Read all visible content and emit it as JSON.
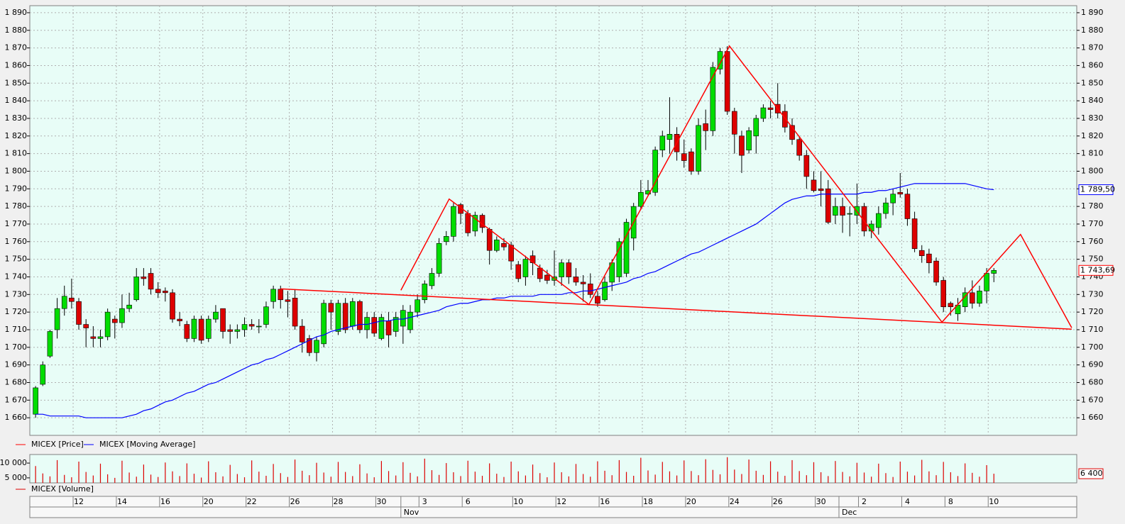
{
  "chart_data": {
    "type": "candlestick",
    "categories": [
      null,
      null,
      null,
      null,
      null,
      null,
      "12",
      null,
      null,
      null,
      null,
      null,
      "14",
      null,
      null,
      null,
      null,
      null,
      "16",
      null,
      null,
      null,
      null,
      null,
      "20",
      null,
      null,
      null,
      null,
      null,
      "22",
      null,
      null,
      null,
      null,
      null,
      "26",
      null,
      null,
      null,
      null,
      null,
      "28",
      null,
      null,
      null,
      null,
      null,
      "30",
      null,
      null,
      null,
      null,
      null,
      "3",
      null,
      null,
      null,
      null,
      null,
      "6",
      null,
      null,
      null,
      null,
      null,
      null,
      "10",
      null,
      null,
      null,
      null,
      null,
      "12",
      null,
      null,
      null,
      null,
      null,
      "16",
      null,
      null,
      null,
      null,
      null,
      "18",
      null,
      null,
      null,
      null,
      null,
      "20",
      null,
      null,
      null,
      null,
      null,
      "24",
      null,
      null,
      null,
      null,
      null,
      "26",
      null,
      null,
      null,
      null,
      null,
      "30",
      null,
      null,
      null,
      null,
      null,
      "2",
      null,
      null,
      null,
      null,
      null,
      "4",
      null,
      null,
      null,
      null,
      null,
      "8",
      null,
      null,
      null,
      null,
      null,
      "10"
    ],
    "months": [
      {
        "label": "Nov",
        "index": 50.7
      },
      {
        "label": "Dec",
        "index": 111.5
      }
    ],
    "xlim": [
      -0.8,
      144.5
    ],
    "ylim": [
      1650,
      1894
    ],
    "yticks": [
      {
        "value": 1660,
        "label": "1 660"
      },
      {
        "value": 1670,
        "label": "1 670"
      },
      {
        "value": 1680,
        "label": "1 680"
      },
      {
        "value": 1690,
        "label": "1 690"
      },
      {
        "value": 1700,
        "label": "1 700"
      },
      {
        "value": 1710,
        "label": "1 710"
      },
      {
        "value": 1720,
        "label": "1 720"
      },
      {
        "value": 1730,
        "label": "1 730"
      },
      {
        "value": 1740,
        "label": "1 740"
      },
      {
        "value": 1750,
        "label": "1 750"
      },
      {
        "value": 1760,
        "label": "1 760"
      },
      {
        "value": 1770,
        "label": "1 770"
      },
      {
        "value": 1780,
        "label": "1 780"
      },
      {
        "value": 1790,
        "label": "1 790"
      },
      {
        "value": 1800,
        "label": "1 800"
      },
      {
        "value": 1810,
        "label": "1 810"
      },
      {
        "value": 1820,
        "label": "1 820"
      },
      {
        "value": 1830,
        "label": "1 830"
      },
      {
        "value": 1840,
        "label": "1 840"
      },
      {
        "value": 1850,
        "label": "1 850"
      },
      {
        "value": 1860,
        "label": "1 860"
      },
      {
        "value": 1870,
        "label": "1 870"
      },
      {
        "value": 1880,
        "label": "1 880"
      },
      {
        "value": 1890,
        "label": "1 890"
      }
    ],
    "grid": true,
    "series": [
      {
        "name": "MICEX [Price]",
        "type": "candlestick",
        "color": "#ff0000",
        "up_color": "#00dd00",
        "down_color": "#dd0000",
        "last_label": "1 743,69",
        "open": [
          1662,
          1679,
          1695,
          1710,
          1722,
          1728,
          1726,
          1713,
          1706,
          1705,
          1706,
          1716,
          1714,
          1722,
          1727,
          1740,
          1742,
          1733,
          1732,
          1731,
          1716,
          1713,
          1705,
          1716,
          1705,
          1716,
          1722,
          1710,
          1709,
          1710,
          1713,
          1712,
          1713,
          1726,
          1733,
          1727,
          1728,
          1712,
          1705,
          1697,
          1702,
          1725,
          1709,
          1725,
          1712,
          1726,
          1710,
          1717,
          1705,
          1715,
          1709,
          1712,
          1710,
          1720,
          1727,
          1735,
          1742,
          1760,
          1763,
          1781,
          1776,
          1766,
          1775,
          1767,
          1755,
          1759,
          1758,
          1747,
          1740,
          1752,
          1745,
          1741,
          1738,
          1740,
          1748,
          1740,
          1737,
          1736,
          1729,
          1727,
          1737,
          1740,
          1742,
          1762,
          1780,
          1787,
          1788,
          1812,
          1818,
          1821,
          1810,
          1811,
          1800,
          1827,
          1823,
          1858,
          1868,
          1834,
          1820,
          1812,
          1820,
          1830,
          1836,
          1838,
          1834,
          1826,
          1818,
          1809,
          1795,
          1790,
          1790,
          1775,
          1780,
          1776,
          1775,
          1780,
          1766,
          1768,
          1776,
          1782,
          1788,
          1787,
          1773,
          1755,
          1753,
          1749,
          1738,
          1725,
          1719,
          1723,
          1731,
          1725,
          1732,
          1742
        ],
        "high": [
          1678,
          1692,
          1710,
          1728,
          1735,
          1739,
          1728,
          1716,
          1712,
          1710,
          1722,
          1718,
          1730,
          1731,
          1745,
          1745,
          1745,
          1737,
          1734,
          1733,
          1720,
          1715,
          1718,
          1718,
          1718,
          1724,
          1722,
          1713,
          1713,
          1717,
          1716,
          1716,
          1726,
          1735,
          1735,
          1732,
          1733,
          1716,
          1707,
          1706,
          1727,
          1727,
          1727,
          1728,
          1728,
          1727,
          1720,
          1720,
          1719,
          1720,
          1720,
          1724,
          1724,
          1730,
          1738,
          1745,
          1762,
          1766,
          1782,
          1782,
          1778,
          1777,
          1776,
          1768,
          1763,
          1762,
          1760,
          1749,
          1752,
          1755,
          1747,
          1744,
          1755,
          1750,
          1750,
          1745,
          1741,
          1742,
          1732,
          1740,
          1750,
          1762,
          1773,
          1782,
          1795,
          1795,
          1814,
          1823,
          1842,
          1825,
          1818,
          1813,
          1830,
          1835,
          1862,
          1870,
          1871,
          1836,
          1823,
          1825,
          1832,
          1838,
          1840,
          1850,
          1838,
          1830,
          1820,
          1812,
          1800,
          1800,
          1795,
          1785,
          1785,
          1780,
          1793,
          1782,
          1772,
          1780,
          1785,
          1790,
          1799,
          1790,
          1777,
          1758,
          1756,
          1751,
          1740,
          1726,
          1728,
          1734,
          1738,
          1735,
          1745,
          1745
        ],
        "low": [
          1660,
          1678,
          1694,
          1705,
          1718,
          1722,
          1710,
          1700,
          1700,
          1700,
          1704,
          1705,
          1711,
          1720,
          1726,
          1735,
          1730,
          1728,
          1726,
          1714,
          1712,
          1703,
          1703,
          1702,
          1703,
          1714,
          1705,
          1702,
          1705,
          1706,
          1710,
          1708,
          1711,
          1722,
          1722,
          1717,
          1710,
          1697,
          1695,
          1692,
          1700,
          1710,
          1707,
          1708,
          1710,
          1708,
          1705,
          1706,
          1704,
          1700,
          1706,
          1702,
          1708,
          1717,
          1725,
          1733,
          1740,
          1758,
          1760,
          1770,
          1763,
          1763,
          1765,
          1747,
          1754,
          1755,
          1744,
          1737,
          1735,
          1741,
          1737,
          1736,
          1735,
          1735,
          1736,
          1735,
          1726,
          1728,
          1723,
          1726,
          1732,
          1737,
          1740,
          1755,
          1778,
          1786,
          1786,
          1808,
          1810,
          1806,
          1802,
          1798,
          1798,
          1812,
          1820,
          1855,
          1832,
          1810,
          1799,
          1810,
          1810,
          1828,
          1830,
          1830,
          1822,
          1815,
          1806,
          1790,
          1788,
          1780,
          1770,
          1770,
          1765,
          1763,
          1770,
          1763,
          1762,
          1764,
          1773,
          1775,
          1785,
          1769,
          1754,
          1748,
          1742,
          1735,
          1720,
          1718,
          1715,
          1720,
          1722,
          1723,
          1725,
          1737
        ],
        "close": [
          1677,
          1690,
          1709,
          1722,
          1729,
          1726,
          1713,
          1711,
          1705,
          1706,
          1720,
          1714,
          1722,
          1724,
          1740,
          1739,
          1733,
          1731,
          1731,
          1716,
          1715,
          1705,
          1716,
          1704,
          1716,
          1720,
          1709,
          1709,
          1710,
          1713,
          1712,
          1712,
          1723,
          1733,
          1727,
          1726,
          1712,
          1703,
          1697,
          1704,
          1725,
          1720,
          1725,
          1710,
          1726,
          1710,
          1717,
          1708,
          1717,
          1707,
          1717,
          1721,
          1720,
          1727,
          1736,
          1742,
          1759,
          1763,
          1780,
          1776,
          1765,
          1775,
          1768,
          1755,
          1761,
          1757,
          1749,
          1739,
          1750,
          1748,
          1739,
          1738,
          1740,
          1748,
          1740,
          1737,
          1736,
          1730,
          1725,
          1737,
          1748,
          1760,
          1771,
          1780,
          1788,
          1789,
          1812,
          1820,
          1821,
          1811,
          1806,
          1800,
          1826,
          1823,
          1859,
          1868,
          1834,
          1821,
          1809,
          1823,
          1830,
          1836,
          1835,
          1833,
          1825,
          1818,
          1809,
          1797,
          1789,
          1789,
          1771,
          1780,
          1775,
          1776,
          1780,
          1766,
          1770,
          1776,
          1782,
          1787,
          1787,
          1773,
          1756,
          1752,
          1748,
          1737,
          1723,
          1723,
          1724,
          1731,
          1725,
          1732,
          1742,
          1743.69
        ]
      },
      {
        "name": "MICEX [Moving Average]",
        "type": "line",
        "color": "#0000ff",
        "last_label": "1 789,50",
        "values": [
          1662,
          1662,
          1661,
          1661,
          1661,
          1661,
          1661,
          1660,
          1660,
          1660,
          1660,
          1660,
          1660,
          1661,
          1662,
          1664,
          1665,
          1667,
          1669,
          1670,
          1672,
          1674,
          1675,
          1677,
          1679,
          1680,
          1682,
          1684,
          1686,
          1688,
          1690,
          1691,
          1693,
          1694,
          1696,
          1698,
          1700,
          1702,
          1704,
          1706,
          1707,
          1709,
          1710,
          1711,
          1712,
          1713,
          1713,
          1714,
          1715,
          1715,
          1716,
          1716,
          1717,
          1718,
          1719,
          1720,
          1721,
          1723,
          1724,
          1725,
          1725,
          1726,
          1727,
          1727,
          1728,
          1728,
          1729,
          1729,
          1729,
          1729,
          1730,
          1730,
          1730,
          1730,
          1731,
          1731,
          1732,
          1732,
          1733,
          1734,
          1735,
          1736,
          1737,
          1739,
          1740,
          1742,
          1743,
          1745,
          1747,
          1749,
          1751,
          1753,
          1754,
          1756,
          1758,
          1760,
          1762,
          1764,
          1766,
          1768,
          1770,
          1773,
          1776,
          1779,
          1782,
          1784,
          1785,
          1786,
          1786,
          1787,
          1787,
          1787,
          1787,
          1787,
          1787,
          1788,
          1788,
          1789,
          1789,
          1790,
          1791,
          1792,
          1793,
          1793,
          1793,
          1793,
          1793,
          1793,
          1793,
          1793,
          1792,
          1791,
          1790,
          1789.5
        ]
      }
    ],
    "lines": [
      {
        "color": "#ff0000",
        "x": [
          50.7,
          57.4,
          76.8,
          96.3,
          125.8,
          136.7,
          143.8
        ],
        "y": [
          1732.4,
          1784.2,
          1724.3,
          1871.1,
          1714.3,
          1764.1,
          1711.1
        ]
      },
      {
        "color": "#ff0000",
        "x": [
          34,
          143.8
        ],
        "y": [
          1733.2,
          1710.3
        ]
      }
    ],
    "volume": {
      "name": "MICEX [Volume]",
      "color": "#dd0000",
      "last_label": "6 400",
      "ylim": [
        3300,
        12900
      ],
      "yticks": [
        {
          "value": 5000,
          "label": "5 000"
        },
        {
          "value": 10000,
          "label": "10 000"
        }
      ],
      "values": [
        9000,
        6500,
        5500,
        11000,
        6000,
        5200,
        10500,
        7000,
        5800,
        9800,
        6200,
        5000,
        10800,
        6800,
        5400,
        9500,
        6100,
        5300,
        10200,
        7200,
        5600,
        9900,
        6400,
        5100,
        10600,
        6900,
        5500,
        9400,
        6300,
        5200,
        10900,
        7100,
        5700,
        9700,
        6600,
        5300,
        11200,
        7400,
        5900,
        10100,
        6800,
        5400,
        10400,
        7000,
        5600,
        9600,
        6500,
        5200,
        10700,
        7300,
        5800,
        10300,
        6700,
        5500,
        11500,
        7600,
        6000,
        10000,
        6900,
        5600,
        10800,
        7100,
        5700,
        9900,
        6400,
        5300,
        10500,
        7200,
        5800,
        9500,
        6600,
        5200,
        10200,
        6900,
        5500,
        9700,
        6300,
        5400,
        10600,
        7400,
        5900,
        11000,
        7000,
        5700,
        11800,
        7500,
        6100,
        10400,
        7200,
        5800,
        10900,
        7300,
        5900,
        11300,
        7700,
        6200,
        12000,
        7800,
        6300,
        11200,
        7400,
        6000,
        10600,
        7100,
        5700,
        11000,
        7300,
        5900,
        10300,
        6900,
        5600,
        10700,
        7000,
        5500,
        10100,
        6800,
        5400,
        9800,
        6600,
        5300,
        10500,
        7100,
        5800,
        11100,
        7200,
        5900,
        10400,
        6900,
        5600,
        9900,
        6700,
        5400,
        9300,
        6400
      ]
    }
  }
}
